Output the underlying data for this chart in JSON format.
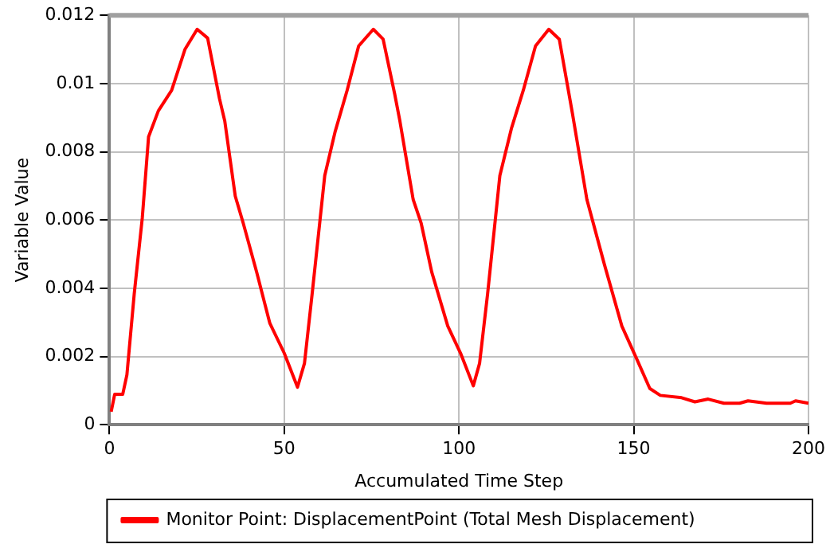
{
  "chart_data": {
    "type": "line",
    "xlabel": "Accumulated Time Step",
    "ylabel": "Variable Value",
    "xlim": [
      0,
      200
    ],
    "xticks": [
      0,
      50,
      100,
      150,
      200
    ],
    "ylim": [
      0,
      0.012
    ],
    "yticks": [
      0,
      0.002,
      0.004,
      0.006,
      0.008,
      0.01,
      0.012
    ],
    "grid": true,
    "legend": "bottom",
    "marker": "none",
    "line_style": "solid",
    "series": [
      {
        "name": "Monitor Point: DisplacementPoint (Total Mesh Displacement)",
        "color": "#ff0000",
        "x": [
          0.5,
          1.5,
          3.8,
          5,
          7.1,
          9.4,
          11.2,
          14,
          17.8,
          21.6,
          25.1,
          28.1,
          31.5,
          33,
          36,
          38.3,
          42.1,
          45.9,
          50,
          53.8,
          55.8,
          58,
          61.6,
          64.6,
          68,
          71.3,
          75.5,
          78.3,
          81.6,
          83.1,
          86.9,
          89.2,
          92.2,
          96.8,
          100.6,
          104.1,
          105.9,
          108.2,
          111.7,
          115,
          118.4,
          121.9,
          125.7,
          128.7,
          132.5,
          136.6,
          141.6,
          146.6,
          150.8,
          154.6,
          157.6,
          163.7,
          167.5,
          171.3,
          175.8,
          180.3,
          182.7,
          188,
          194.8,
          196.3,
          200
        ],
        "values": [
          0.00038,
          0.00089,
          0.00089,
          0.00146,
          0.00384,
          0.00606,
          0.00844,
          0.0092,
          0.0098,
          0.011,
          0.01159,
          0.01133,
          0.00955,
          0.0089,
          0.0067,
          0.0059,
          0.00448,
          0.00297,
          0.0021,
          0.0011,
          0.0018,
          0.00384,
          0.0073,
          0.0086,
          0.0098,
          0.0111,
          0.01159,
          0.0113,
          0.0097,
          0.0089,
          0.0066,
          0.0059,
          0.00448,
          0.00289,
          0.00206,
          0.00114,
          0.0018,
          0.00384,
          0.0073,
          0.00868,
          0.0098,
          0.0111,
          0.01159,
          0.0113,
          0.0091,
          0.0066,
          0.0047,
          0.00289,
          0.00194,
          0.00106,
          0.00086,
          0.00079,
          0.00067,
          0.00075,
          0.00063,
          0.00063,
          0.0007,
          0.00063,
          0.00063,
          0.0007,
          0.00063
        ]
      }
    ]
  }
}
